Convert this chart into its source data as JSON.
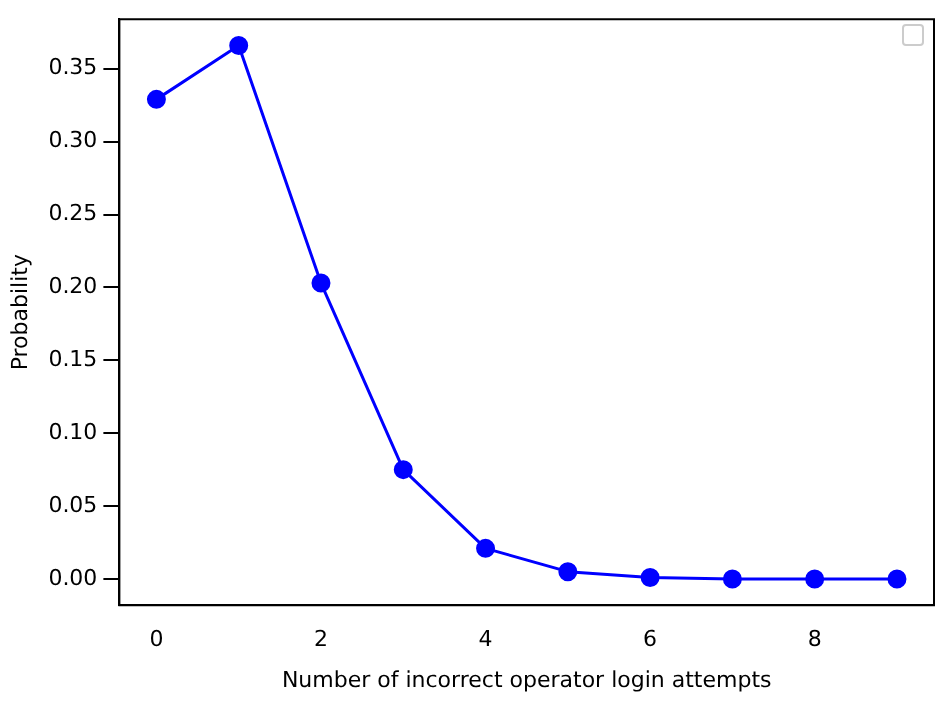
{
  "chart_data": {
    "type": "line",
    "xlabel": "Number of incorrect operator login attempts",
    "ylabel": "Probability",
    "x": [
      0,
      1,
      2,
      3,
      4,
      5,
      6,
      7,
      8,
      9
    ],
    "series": [
      {
        "color": "#0000ff",
        "values": [
          0.329,
          0.366,
          0.203,
          0.075,
          0.021,
          0.005,
          0.001,
          0,
          0,
          0
        ]
      }
    ],
    "xlim": [
      -0.45,
      9.45
    ],
    "xticks": [
      0,
      2,
      4,
      6,
      8
    ],
    "ylim": [
      -0.018,
      0.384
    ],
    "yticks": [
      {
        "value": 0,
        "label": "0.00"
      },
      {
        "value": 0.05,
        "label": "0.05"
      },
      {
        "value": 0.1,
        "label": "0.10"
      },
      {
        "value": 0.15,
        "label": "0.15"
      },
      {
        "value": 0.2,
        "label": "0.20"
      },
      {
        "value": 0.25,
        "label": "0.25"
      },
      {
        "value": 0.3,
        "label": "0.30"
      },
      {
        "value": 0.35,
        "label": "0.35"
      }
    ],
    "grid": false,
    "marker": "circle",
    "line_style": "solid"
  }
}
